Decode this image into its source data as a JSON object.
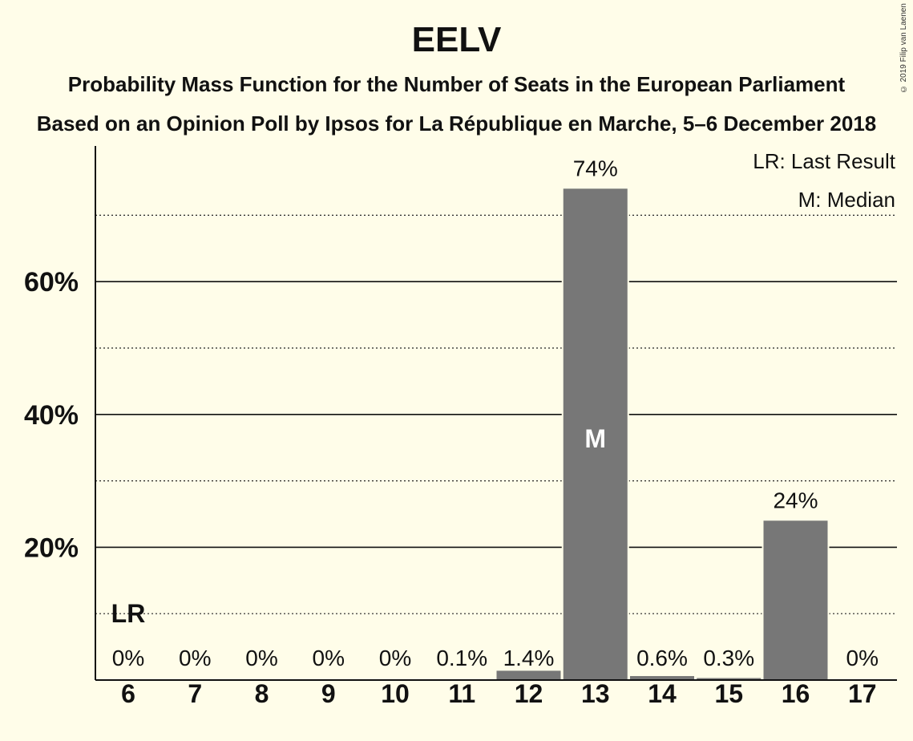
{
  "chart_data": {
    "type": "bar",
    "title": "EELV",
    "subtitle": "Probability Mass Function for the Number of Seats in the European Parliament",
    "subtitle2": "Based on an Opinion Poll by Ipsos for La République en Marche, 5–6 December 2018",
    "copyright": "© 2019 Filip van Laenen",
    "categories": [
      "6",
      "7",
      "8",
      "9",
      "10",
      "11",
      "12",
      "13",
      "14",
      "15",
      "16",
      "17"
    ],
    "values": [
      0,
      0,
      0,
      0,
      0,
      0.1,
      1.4,
      74,
      0.6,
      0.3,
      24,
      0
    ],
    "value_labels": [
      "0%",
      "0%",
      "0%",
      "0%",
      "0%",
      "0.1%",
      "1.4%",
      "74%",
      "0.6%",
      "0.3%",
      "24%",
      "0%"
    ],
    "ylim": [
      0,
      80
    ],
    "yticks": [
      20,
      40,
      60
    ],
    "ytick_labels": [
      "20%",
      "40%",
      "60%"
    ],
    "minor_gridlines": [
      10,
      30,
      50,
      70
    ],
    "last_result": {
      "category": "6",
      "label": "LR"
    },
    "median": {
      "category": "13",
      "label": "M"
    },
    "legend": [
      "LR: Last Result",
      "M: Median"
    ],
    "legend_position": "top-right",
    "bar_color": "#777777",
    "background_color": "#FFFDE9"
  }
}
